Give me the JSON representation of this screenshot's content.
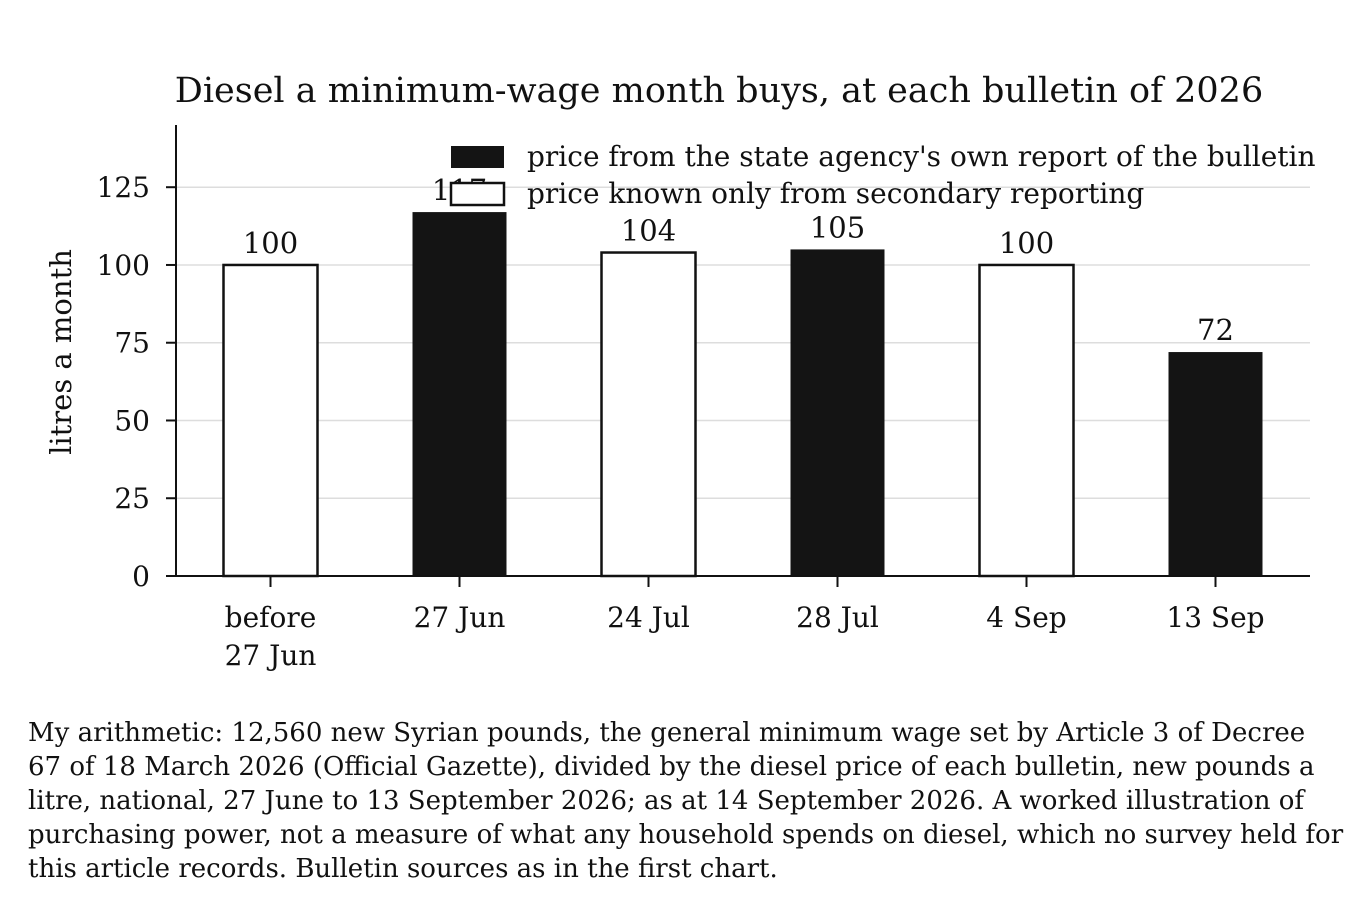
{
  "chart_data": {
    "type": "bar",
    "title": "Diesel a minimum-wage month buys, at each bulletin of 2026",
    "ylabel": "litres a month",
    "xlabel": "",
    "ylim": [
      0,
      145
    ],
    "yticks": [
      0,
      25,
      50,
      75,
      100,
      125
    ],
    "grid": true,
    "legend_position": "top-right",
    "categories": [
      [
        "before",
        "27 Jun"
      ],
      [
        "27 Jun"
      ],
      [
        "24 Jul"
      ],
      [
        "28 Jul"
      ],
      [
        "4 Sep"
      ],
      [
        "13 Sep"
      ]
    ],
    "values": [
      100,
      117,
      104,
      105,
      100,
      72
    ],
    "value_labels": [
      "100",
      "117",
      "104",
      "105",
      "100",
      "72"
    ],
    "source": [
      "secondary",
      "official",
      "secondary",
      "official",
      "secondary",
      "official"
    ],
    "legend": [
      {
        "key": "official",
        "label": "price from the state agency's own report of the bulletin",
        "fill": "#141414"
      },
      {
        "key": "secondary",
        "label": "price known only from secondary reporting",
        "fill": "#ffffff"
      }
    ],
    "colors": {
      "official": "#141414",
      "secondary": "#ffffff",
      "grid": "#dddddd",
      "axis": "#111111"
    }
  },
  "caption": "My arithmetic: 12,560 new Syrian pounds, the general minimum wage set by Article 3 of Decree 67 of 18 March 2026 (Official Gazette), divided by the diesel price of each bulletin, new pounds a litre, national, 27 June to 13 September 2026; as at 14 September 2026. A worked illustration of purchasing power, not a measure of what any household spends on diesel, which no survey held for this article records. Bulletin sources as in the first chart."
}
